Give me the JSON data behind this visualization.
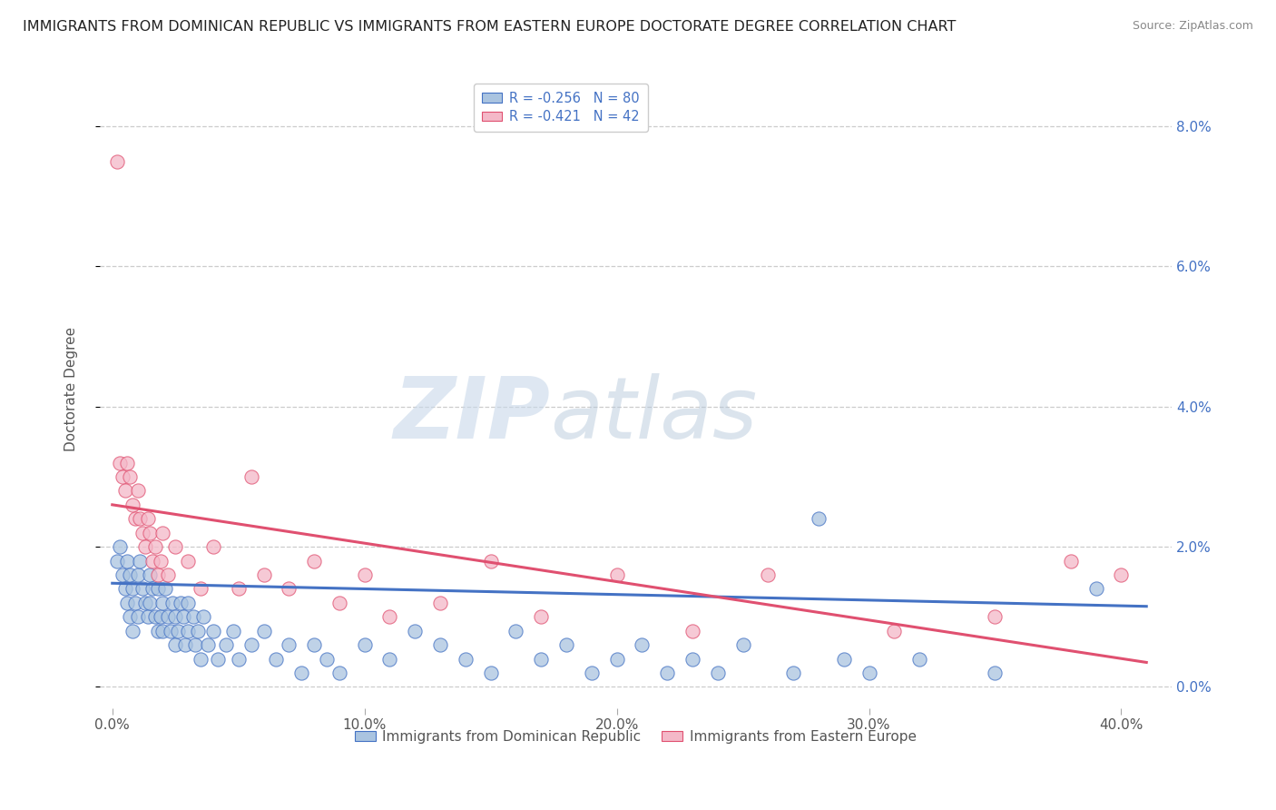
{
  "title": "IMMIGRANTS FROM DOMINICAN REPUBLIC VS IMMIGRANTS FROM EASTERN EUROPE DOCTORATE DEGREE CORRELATION CHART",
  "source": "Source: ZipAtlas.com",
  "ylabel": "Doctorate Degree",
  "xlabel_ticks_labels": [
    "0.0%",
    "10.0%",
    "20.0%",
    "30.0%",
    "40.0%"
  ],
  "xlabel_ticks_vals": [
    0.0,
    0.1,
    0.2,
    0.3,
    0.4
  ],
  "ylabel_ticks_labels": [
    "0.0%",
    "2.0%",
    "4.0%",
    "6.0%",
    "8.0%"
  ],
  "ylabel_ticks_vals": [
    0.0,
    0.02,
    0.04,
    0.06,
    0.08
  ],
  "xlim": [
    -0.005,
    0.42
  ],
  "ylim": [
    -0.003,
    0.088
  ],
  "series1": {
    "name": "Immigrants from Dominican Republic",
    "color": "#aac4e0",
    "edge_color": "#4472c4",
    "line_color": "#4472c4",
    "R": -0.256,
    "N": 80,
    "points": [
      [
        0.002,
        0.018
      ],
      [
        0.003,
        0.02
      ],
      [
        0.004,
        0.016
      ],
      [
        0.005,
        0.014
      ],
      [
        0.006,
        0.012
      ],
      [
        0.006,
        0.018
      ],
      [
        0.007,
        0.01
      ],
      [
        0.007,
        0.016
      ],
      [
        0.008,
        0.008
      ],
      [
        0.008,
        0.014
      ],
      [
        0.009,
        0.012
      ],
      [
        0.01,
        0.016
      ],
      [
        0.01,
        0.01
      ],
      [
        0.011,
        0.018
      ],
      [
        0.012,
        0.014
      ],
      [
        0.013,
        0.012
      ],
      [
        0.014,
        0.01
      ],
      [
        0.015,
        0.016
      ],
      [
        0.015,
        0.012
      ],
      [
        0.016,
        0.014
      ],
      [
        0.017,
        0.01
      ],
      [
        0.018,
        0.008
      ],
      [
        0.018,
        0.014
      ],
      [
        0.019,
        0.01
      ],
      [
        0.02,
        0.012
      ],
      [
        0.02,
        0.008
      ],
      [
        0.021,
        0.014
      ],
      [
        0.022,
        0.01
      ],
      [
        0.023,
        0.008
      ],
      [
        0.024,
        0.012
      ],
      [
        0.025,
        0.01
      ],
      [
        0.025,
        0.006
      ],
      [
        0.026,
        0.008
      ],
      [
        0.027,
        0.012
      ],
      [
        0.028,
        0.01
      ],
      [
        0.029,
        0.006
      ],
      [
        0.03,
        0.008
      ],
      [
        0.03,
        0.012
      ],
      [
        0.032,
        0.01
      ],
      [
        0.033,
        0.006
      ],
      [
        0.034,
        0.008
      ],
      [
        0.035,
        0.004
      ],
      [
        0.036,
        0.01
      ],
      [
        0.038,
        0.006
      ],
      [
        0.04,
        0.008
      ],
      [
        0.042,
        0.004
      ],
      [
        0.045,
        0.006
      ],
      [
        0.048,
        0.008
      ],
      [
        0.05,
        0.004
      ],
      [
        0.055,
        0.006
      ],
      [
        0.06,
        0.008
      ],
      [
        0.065,
        0.004
      ],
      [
        0.07,
        0.006
      ],
      [
        0.075,
        0.002
      ],
      [
        0.08,
        0.006
      ],
      [
        0.085,
        0.004
      ],
      [
        0.09,
        0.002
      ],
      [
        0.1,
        0.006
      ],
      [
        0.11,
        0.004
      ],
      [
        0.12,
        0.008
      ],
      [
        0.13,
        0.006
      ],
      [
        0.14,
        0.004
      ],
      [
        0.15,
        0.002
      ],
      [
        0.16,
        0.008
      ],
      [
        0.17,
        0.004
      ],
      [
        0.18,
        0.006
      ],
      [
        0.19,
        0.002
      ],
      [
        0.2,
        0.004
      ],
      [
        0.21,
        0.006
      ],
      [
        0.22,
        0.002
      ],
      [
        0.23,
        0.004
      ],
      [
        0.24,
        0.002
      ],
      [
        0.25,
        0.006
      ],
      [
        0.27,
        0.002
      ],
      [
        0.28,
        0.024
      ],
      [
        0.29,
        0.004
      ],
      [
        0.3,
        0.002
      ],
      [
        0.32,
        0.004
      ],
      [
        0.35,
        0.002
      ],
      [
        0.39,
        0.014
      ]
    ],
    "trend_x": [
      0.0,
      0.41
    ],
    "trend_y": [
      0.0148,
      0.0115
    ]
  },
  "series2": {
    "name": "Immigrants from Eastern Europe",
    "color": "#f4b8c8",
    "edge_color": "#e05070",
    "line_color": "#e05070",
    "R": -0.421,
    "N": 42,
    "points": [
      [
        0.002,
        0.075
      ],
      [
        0.003,
        0.032
      ],
      [
        0.004,
        0.03
      ],
      [
        0.005,
        0.028
      ],
      [
        0.006,
        0.032
      ],
      [
        0.007,
        0.03
      ],
      [
        0.008,
        0.026
      ],
      [
        0.009,
        0.024
      ],
      [
        0.01,
        0.028
      ],
      [
        0.011,
        0.024
      ],
      [
        0.012,
        0.022
      ],
      [
        0.013,
        0.02
      ],
      [
        0.014,
        0.024
      ],
      [
        0.015,
        0.022
      ],
      [
        0.016,
        0.018
      ],
      [
        0.017,
        0.02
      ],
      [
        0.018,
        0.016
      ],
      [
        0.019,
        0.018
      ],
      [
        0.02,
        0.022
      ],
      [
        0.022,
        0.016
      ],
      [
        0.025,
        0.02
      ],
      [
        0.03,
        0.018
      ],
      [
        0.035,
        0.014
      ],
      [
        0.04,
        0.02
      ],
      [
        0.05,
        0.014
      ],
      [
        0.055,
        0.03
      ],
      [
        0.06,
        0.016
      ],
      [
        0.07,
        0.014
      ],
      [
        0.08,
        0.018
      ],
      [
        0.09,
        0.012
      ],
      [
        0.1,
        0.016
      ],
      [
        0.11,
        0.01
      ],
      [
        0.13,
        0.012
      ],
      [
        0.15,
        0.018
      ],
      [
        0.17,
        0.01
      ],
      [
        0.2,
        0.016
      ],
      [
        0.23,
        0.008
      ],
      [
        0.26,
        0.016
      ],
      [
        0.31,
        0.008
      ],
      [
        0.35,
        0.01
      ],
      [
        0.38,
        0.018
      ],
      [
        0.4,
        0.016
      ]
    ],
    "trend_x": [
      0.0,
      0.41
    ],
    "trend_y": [
      0.026,
      0.0035
    ]
  },
  "watermark_zip": "ZIP",
  "watermark_atlas": "atlas",
  "background_color": "#ffffff",
  "grid_color": "#cccccc",
  "title_color": "#222222",
  "axis_label_color": "#4472c4",
  "tick_label_color": "#555555",
  "legend_label_color": "#4472c4",
  "title_fontsize": 11.5,
  "source_fontsize": 9
}
